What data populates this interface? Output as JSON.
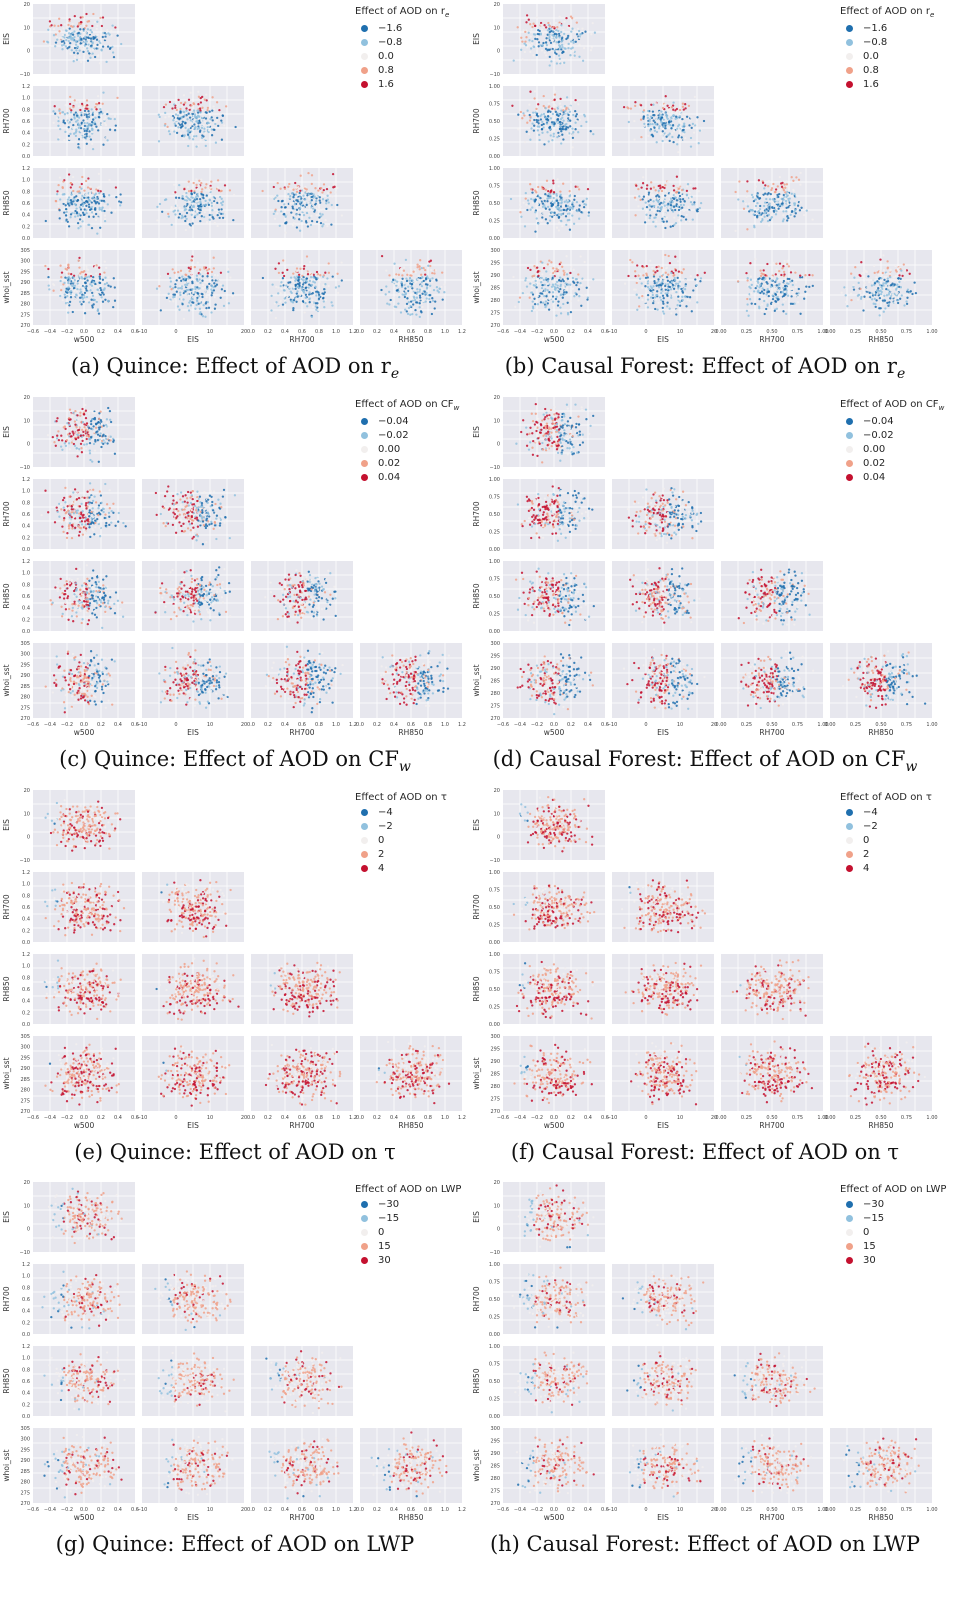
{
  "chart_data": [
    {
      "type": "scatter",
      "caption": "(a) Quince: Effect of AOD on r",
      "caption_sub": "e",
      "legend": {
        "title": "Effect of AOD on r",
        "title_sub": "e",
        "entries": [
          "−1.6",
          "−0.8",
          "0.0",
          "0.8",
          "1.6"
        ]
      },
      "variables": [
        "w500",
        "EIS",
        "RH700",
        "RH850",
        "whoi_sst"
      ],
      "axes": {
        "w500": {
          "ticks": [
            "−0.6",
            "−0.4",
            "−0.2",
            "0.0",
            "0.2",
            "0.4",
            "0.6"
          ],
          "range": [
            -0.6,
            0.6
          ]
        },
        "EIS": {
          "ticks": [
            "−10",
            "0",
            "10",
            "20"
          ],
          "range": [
            -15,
            28
          ]
        },
        "RH700": {
          "ticks": [
            "0.0",
            "0.2",
            "0.4",
            "0.6",
            "0.8",
            "1.0",
            "1.2"
          ],
          "range": [
            0,
            1.2
          ]
        },
        "RH850": {
          "ticks": [
            "0.0",
            "0.2",
            "0.4",
            "0.6",
            "0.8",
            "1.0",
            "1.2"
          ],
          "range": [
            0,
            1.2
          ]
        },
        "whoi_sst": {
          "ticks": [
            "270",
            "275",
            "280",
            "285",
            "290",
            "295",
            "300",
            "305"
          ],
          "range": [
            270,
            305
          ]
        }
      },
      "pattern": "re"
    },
    {
      "type": "scatter",
      "caption": "(b) Causal Forest: Effect of AOD on r",
      "caption_sub": "e",
      "legend": {
        "title": "Effect of AOD on r",
        "title_sub": "e",
        "entries": [
          "−1.6",
          "−0.8",
          "0.0",
          "0.8",
          "1.6"
        ]
      },
      "variables": [
        "w500",
        "EIS",
        "RH700",
        "RH850",
        "whoi_sst"
      ],
      "axes": {
        "w500": {
          "ticks": [
            "−0.6",
            "−0.4",
            "−0.2",
            "0.0",
            "0.2",
            "0.4",
            "0.6"
          ],
          "range": [
            -0.6,
            0.6
          ]
        },
        "EIS": {
          "ticks": [
            "−10",
            "0",
            "10",
            "20"
          ],
          "range": [
            -15,
            28
          ]
        },
        "RH700": {
          "ticks": [
            "0.00",
            "0.25",
            "0.50",
            "0.75",
            "1.00"
          ],
          "range": [
            0,
            1.1
          ]
        },
        "RH850": {
          "ticks": [
            "0.00",
            "0.25",
            "0.50",
            "0.75",
            "1.00"
          ],
          "range": [
            0,
            1.1
          ]
        },
        "whoi_sst": {
          "ticks": [
            "270",
            "275",
            "280",
            "285",
            "290",
            "295",
            "300"
          ],
          "range": [
            270,
            303
          ]
        }
      },
      "pattern": "re"
    },
    {
      "type": "scatter",
      "caption": "(c) Quince: Effect of AOD on CF",
      "caption_sub": "w",
      "legend": {
        "title": "Effect of AOD on CF",
        "title_sub": "w",
        "entries": [
          "−0.04",
          "−0.02",
          "0.00",
          "0.02",
          "0.04"
        ]
      },
      "variables": [
        "w500",
        "EIS",
        "RH700",
        "RH850",
        "whoi_sst"
      ],
      "axes": {
        "w500": {
          "ticks": [
            "−0.6",
            "−0.4",
            "−0.2",
            "0.0",
            "0.2",
            "0.4",
            "0.6"
          ],
          "range": [
            -0.6,
            0.6
          ]
        },
        "EIS": {
          "ticks": [
            "−10",
            "0",
            "10",
            "20"
          ],
          "range": [
            -15,
            28
          ]
        },
        "RH700": {
          "ticks": [
            "0.0",
            "0.2",
            "0.4",
            "0.6",
            "0.8",
            "1.0",
            "1.2"
          ],
          "range": [
            0,
            1.2
          ]
        },
        "RH850": {
          "ticks": [
            "0.0",
            "0.2",
            "0.4",
            "0.6",
            "0.8",
            "1.0",
            "1.2"
          ],
          "range": [
            0,
            1.2
          ]
        },
        "whoi_sst": {
          "ticks": [
            "270",
            "275",
            "280",
            "285",
            "290",
            "295",
            "300",
            "305"
          ],
          "range": [
            270,
            305
          ]
        }
      },
      "pattern": "cf"
    },
    {
      "type": "scatter",
      "caption": "(d) Causal Forest: Effect of AOD on CF",
      "caption_sub": "w",
      "legend": {
        "title": "Effect of AOD on CF",
        "title_sub": "w",
        "entries": [
          "−0.04",
          "−0.02",
          "0.00",
          "0.02",
          "0.04"
        ]
      },
      "variables": [
        "w500",
        "EIS",
        "RH700",
        "RH850",
        "whoi_sst"
      ],
      "axes": {
        "w500": {
          "ticks": [
            "−0.6",
            "−0.4",
            "−0.2",
            "0.0",
            "0.2",
            "0.4",
            "0.6"
          ],
          "range": [
            -0.6,
            0.6
          ]
        },
        "EIS": {
          "ticks": [
            "−10",
            "0",
            "10",
            "20"
          ],
          "range": [
            -15,
            28
          ]
        },
        "RH700": {
          "ticks": [
            "0.00",
            "0.25",
            "0.50",
            "0.75",
            "1.00"
          ],
          "range": [
            0,
            1.1
          ]
        },
        "RH850": {
          "ticks": [
            "0.00",
            "0.25",
            "0.50",
            "0.75",
            "1.00"
          ],
          "range": [
            0,
            1.1
          ]
        },
        "whoi_sst": {
          "ticks": [
            "270",
            "275",
            "280",
            "285",
            "290",
            "295",
            "300"
          ],
          "range": [
            270,
            303
          ]
        }
      },
      "pattern": "cf"
    },
    {
      "type": "scatter",
      "caption": "(e) Quince: Effect of AOD on τ",
      "caption_sub": "",
      "legend": {
        "title": "Effect of AOD on τ",
        "title_sub": "",
        "entries": [
          "−4",
          "−2",
          "0",
          "2",
          "4"
        ]
      },
      "variables": [
        "w500",
        "EIS",
        "RH700",
        "RH850",
        "whoi_sst"
      ],
      "axes": {
        "w500": {
          "ticks": [
            "−0.6",
            "−0.4",
            "−0.2",
            "0.0",
            "0.2",
            "0.4",
            "0.6"
          ],
          "range": [
            -0.6,
            0.6
          ]
        },
        "EIS": {
          "ticks": [
            "−10",
            "0",
            "10",
            "20"
          ],
          "range": [
            -15,
            28
          ]
        },
        "RH700": {
          "ticks": [
            "0.0",
            "0.2",
            "0.4",
            "0.6",
            "0.8",
            "1.0",
            "1.2"
          ],
          "range": [
            0,
            1.2
          ]
        },
        "RH850": {
          "ticks": [
            "0.0",
            "0.2",
            "0.4",
            "0.6",
            "0.8",
            "1.0",
            "1.2"
          ],
          "range": [
            0,
            1.2
          ]
        },
        "whoi_sst": {
          "ticks": [
            "270",
            "275",
            "280",
            "285",
            "290",
            "295",
            "300",
            "305"
          ],
          "range": [
            270,
            305
          ]
        }
      },
      "pattern": "tau"
    },
    {
      "type": "scatter",
      "caption": "(f) Causal Forest: Effect of AOD on τ",
      "caption_sub": "",
      "legend": {
        "title": "Effect of AOD on τ",
        "title_sub": "",
        "entries": [
          "−4",
          "−2",
          "0",
          "2",
          "4"
        ]
      },
      "variables": [
        "w500",
        "EIS",
        "RH700",
        "RH850",
        "whoi_sst"
      ],
      "axes": {
        "w500": {
          "ticks": [
            "−0.6",
            "−0.4",
            "−0.2",
            "0.0",
            "0.2",
            "0.4",
            "0.6"
          ],
          "range": [
            -0.6,
            0.6
          ]
        },
        "EIS": {
          "ticks": [
            "−10",
            "0",
            "10",
            "20"
          ],
          "range": [
            -15,
            28
          ]
        },
        "RH700": {
          "ticks": [
            "0.00",
            "0.25",
            "0.50",
            "0.75",
            "1.00"
          ],
          "range": [
            0,
            1.1
          ]
        },
        "RH850": {
          "ticks": [
            "0.00",
            "0.25",
            "0.50",
            "0.75",
            "1.00"
          ],
          "range": [
            0,
            1.1
          ]
        },
        "whoi_sst": {
          "ticks": [
            "270",
            "275",
            "280",
            "285",
            "290",
            "295",
            "300"
          ],
          "range": [
            270,
            303
          ]
        }
      },
      "pattern": "tau"
    },
    {
      "type": "scatter",
      "caption": "(g) Quince: Effect of AOD on LWP",
      "caption_sub": "",
      "legend": {
        "title": "Effect of AOD on LWP",
        "title_sub": "",
        "entries": [
          "−30",
          "−15",
          "0",
          "15",
          "30"
        ]
      },
      "variables": [
        "w500",
        "EIS",
        "RH700",
        "RH850",
        "whoi_sst"
      ],
      "axes": {
        "w500": {
          "ticks": [
            "−0.6",
            "−0.4",
            "−0.2",
            "0.0",
            "0.2",
            "0.4",
            "0.6"
          ],
          "range": [
            -0.6,
            0.6
          ]
        },
        "EIS": {
          "ticks": [
            "−10",
            "0",
            "10",
            "20"
          ],
          "range": [
            -15,
            28
          ]
        },
        "RH700": {
          "ticks": [
            "0.0",
            "0.2",
            "0.4",
            "0.6",
            "0.8",
            "1.0",
            "1.2"
          ],
          "range": [
            0,
            1.2
          ]
        },
        "RH850": {
          "ticks": [
            "0.0",
            "0.2",
            "0.4",
            "0.6",
            "0.8",
            "1.0",
            "1.2"
          ],
          "range": [
            0,
            1.2
          ]
        },
        "whoi_sst": {
          "ticks": [
            "270",
            "275",
            "280",
            "285",
            "290",
            "295",
            "300",
            "305"
          ],
          "range": [
            270,
            305
          ]
        }
      },
      "pattern": "lwp"
    },
    {
      "type": "scatter",
      "caption": "(h) Causal Forest: Effect of AOD on LWP",
      "caption_sub": "",
      "legend": {
        "title": "Effect of AOD on LWP",
        "title_sub": "",
        "entries": [
          "−30",
          "−15",
          "0",
          "15",
          "30"
        ]
      },
      "variables": [
        "w500",
        "EIS",
        "RH700",
        "RH850",
        "whoi_sst"
      ],
      "axes": {
        "w500": {
          "ticks": [
            "−0.6",
            "−0.4",
            "−0.2",
            "0.0",
            "0.2",
            "0.4",
            "0.6"
          ],
          "range": [
            -0.6,
            0.6
          ]
        },
        "EIS": {
          "ticks": [
            "−10",
            "0",
            "10",
            "20"
          ],
          "range": [
            -15,
            28
          ]
        },
        "RH700": {
          "ticks": [
            "0.00",
            "0.25",
            "0.50",
            "0.75",
            "1.00"
          ],
          "range": [
            0,
            1.1
          ]
        },
        "RH850": {
          "ticks": [
            "0.00",
            "0.25",
            "0.50",
            "0.75",
            "1.00"
          ],
          "range": [
            0,
            1.1
          ]
        },
        "whoi_sst": {
          "ticks": [
            "270",
            "275",
            "280",
            "285",
            "290",
            "295",
            "300"
          ],
          "range": [
            270,
            303
          ]
        }
      },
      "pattern": "lwp"
    }
  ],
  "colors": {
    "palette": [
      "#1f6fae",
      "#91c1de",
      "#f2efee",
      "#f0a189",
      "#c4112f"
    ],
    "panel_bg": "#e7e7ee",
    "grid": "#ffffff"
  }
}
